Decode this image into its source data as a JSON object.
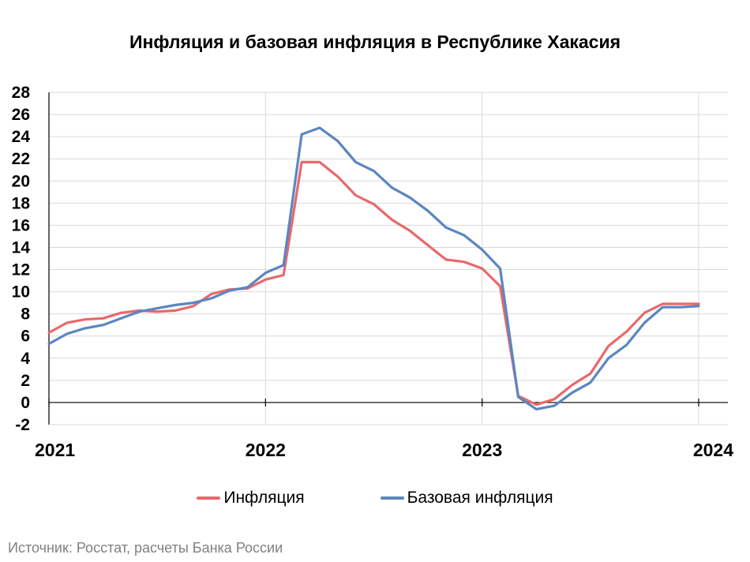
{
  "source_text": "Источник: Росстат, расчеты Банка России",
  "colors": {
    "inflation": "#e8696b",
    "core": "#5b86c0",
    "grid": "#d9d9d9",
    "axis": "#000000"
  },
  "chart_data": {
    "type": "line",
    "title": "Инфляция и базовая инфляция в Республике Хакасия",
    "xlabel": "",
    "ylabel": "",
    "ylim": [
      -2,
      28
    ],
    "yticks": [
      "28",
      "26",
      "24",
      "22",
      "20",
      "18",
      "16",
      "14",
      "12",
      "10",
      "8",
      "6",
      "4",
      "2",
      "0",
      "-2"
    ],
    "year_labels": [
      "2021",
      "2022",
      "2023",
      "2024"
    ],
    "x": [
      "2021-01",
      "2021-02",
      "2021-03",
      "2021-04",
      "2021-05",
      "2021-06",
      "2021-07",
      "2021-08",
      "2021-09",
      "2021-10",
      "2021-11",
      "2021-12",
      "2022-01",
      "2022-02",
      "2022-03",
      "2022-04",
      "2022-05",
      "2022-06",
      "2022-07",
      "2022-08",
      "2022-09",
      "2022-10",
      "2022-11",
      "2022-12",
      "2023-01",
      "2023-02",
      "2023-03",
      "2023-04",
      "2023-05",
      "2023-06",
      "2023-07",
      "2023-08",
      "2023-09",
      "2023-10",
      "2023-11",
      "2023-12",
      "2024-01"
    ],
    "legend_position": "bottom",
    "grid": true,
    "series": [
      {
        "name": "Инфляция",
        "color": "#e8696b",
        "values": [
          6.3,
          7.2,
          7.5,
          7.6,
          8.1,
          8.3,
          8.2,
          8.3,
          8.7,
          9.8,
          10.2,
          10.3,
          11.1,
          11.5,
          21.7,
          21.7,
          20.4,
          18.7,
          17.9,
          16.5,
          15.5,
          14.2,
          12.9,
          12.7,
          12.1,
          10.5,
          0.6,
          -0.2,
          0.3,
          1.6,
          2.6,
          5.1,
          6.4,
          8.1,
          8.9,
          8.9,
          8.9
        ]
      },
      {
        "name": "Базовая инфляция",
        "color": "#5b86c0",
        "values": [
          5.3,
          6.2,
          6.7,
          7.0,
          7.6,
          8.2,
          8.5,
          8.8,
          9.0,
          9.4,
          10.1,
          10.4,
          11.7,
          12.4,
          24.2,
          24.8,
          23.6,
          21.7,
          20.9,
          19.4,
          18.5,
          17.3,
          15.8,
          15.1,
          13.8,
          12.1,
          0.5,
          -0.6,
          -0.3,
          0.9,
          1.8,
          4.0,
          5.2,
          7.2,
          8.6,
          8.6,
          8.7
        ]
      }
    ]
  }
}
